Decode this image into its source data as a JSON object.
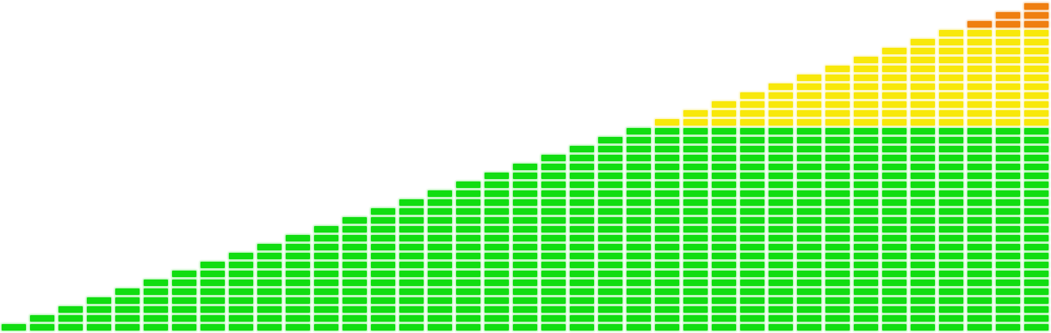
{
  "meter": {
    "columns": 37,
    "levels": [
      1,
      2,
      3,
      4,
      5,
      6,
      7,
      8,
      9,
      10,
      11,
      12,
      13,
      14,
      15,
      16,
      17,
      18,
      19,
      20,
      21,
      22,
      23,
      24,
      25,
      26,
      27,
      28,
      29,
      30,
      31,
      32,
      33,
      34,
      35,
      36,
      37
    ],
    "zones": [
      {
        "name": "normal",
        "from_level": 1,
        "to_level": 23,
        "color": "#11dd11",
        "glow": "#9ff29f"
      },
      {
        "name": "warning",
        "from_level": 24,
        "to_level": 34,
        "color": "#f8e80a",
        "glow": "#fbf3a0"
      },
      {
        "name": "peak",
        "from_level": 35,
        "to_level": 37,
        "color": "#ef7f10",
        "glow": "#f6c08a"
      }
    ]
  }
}
